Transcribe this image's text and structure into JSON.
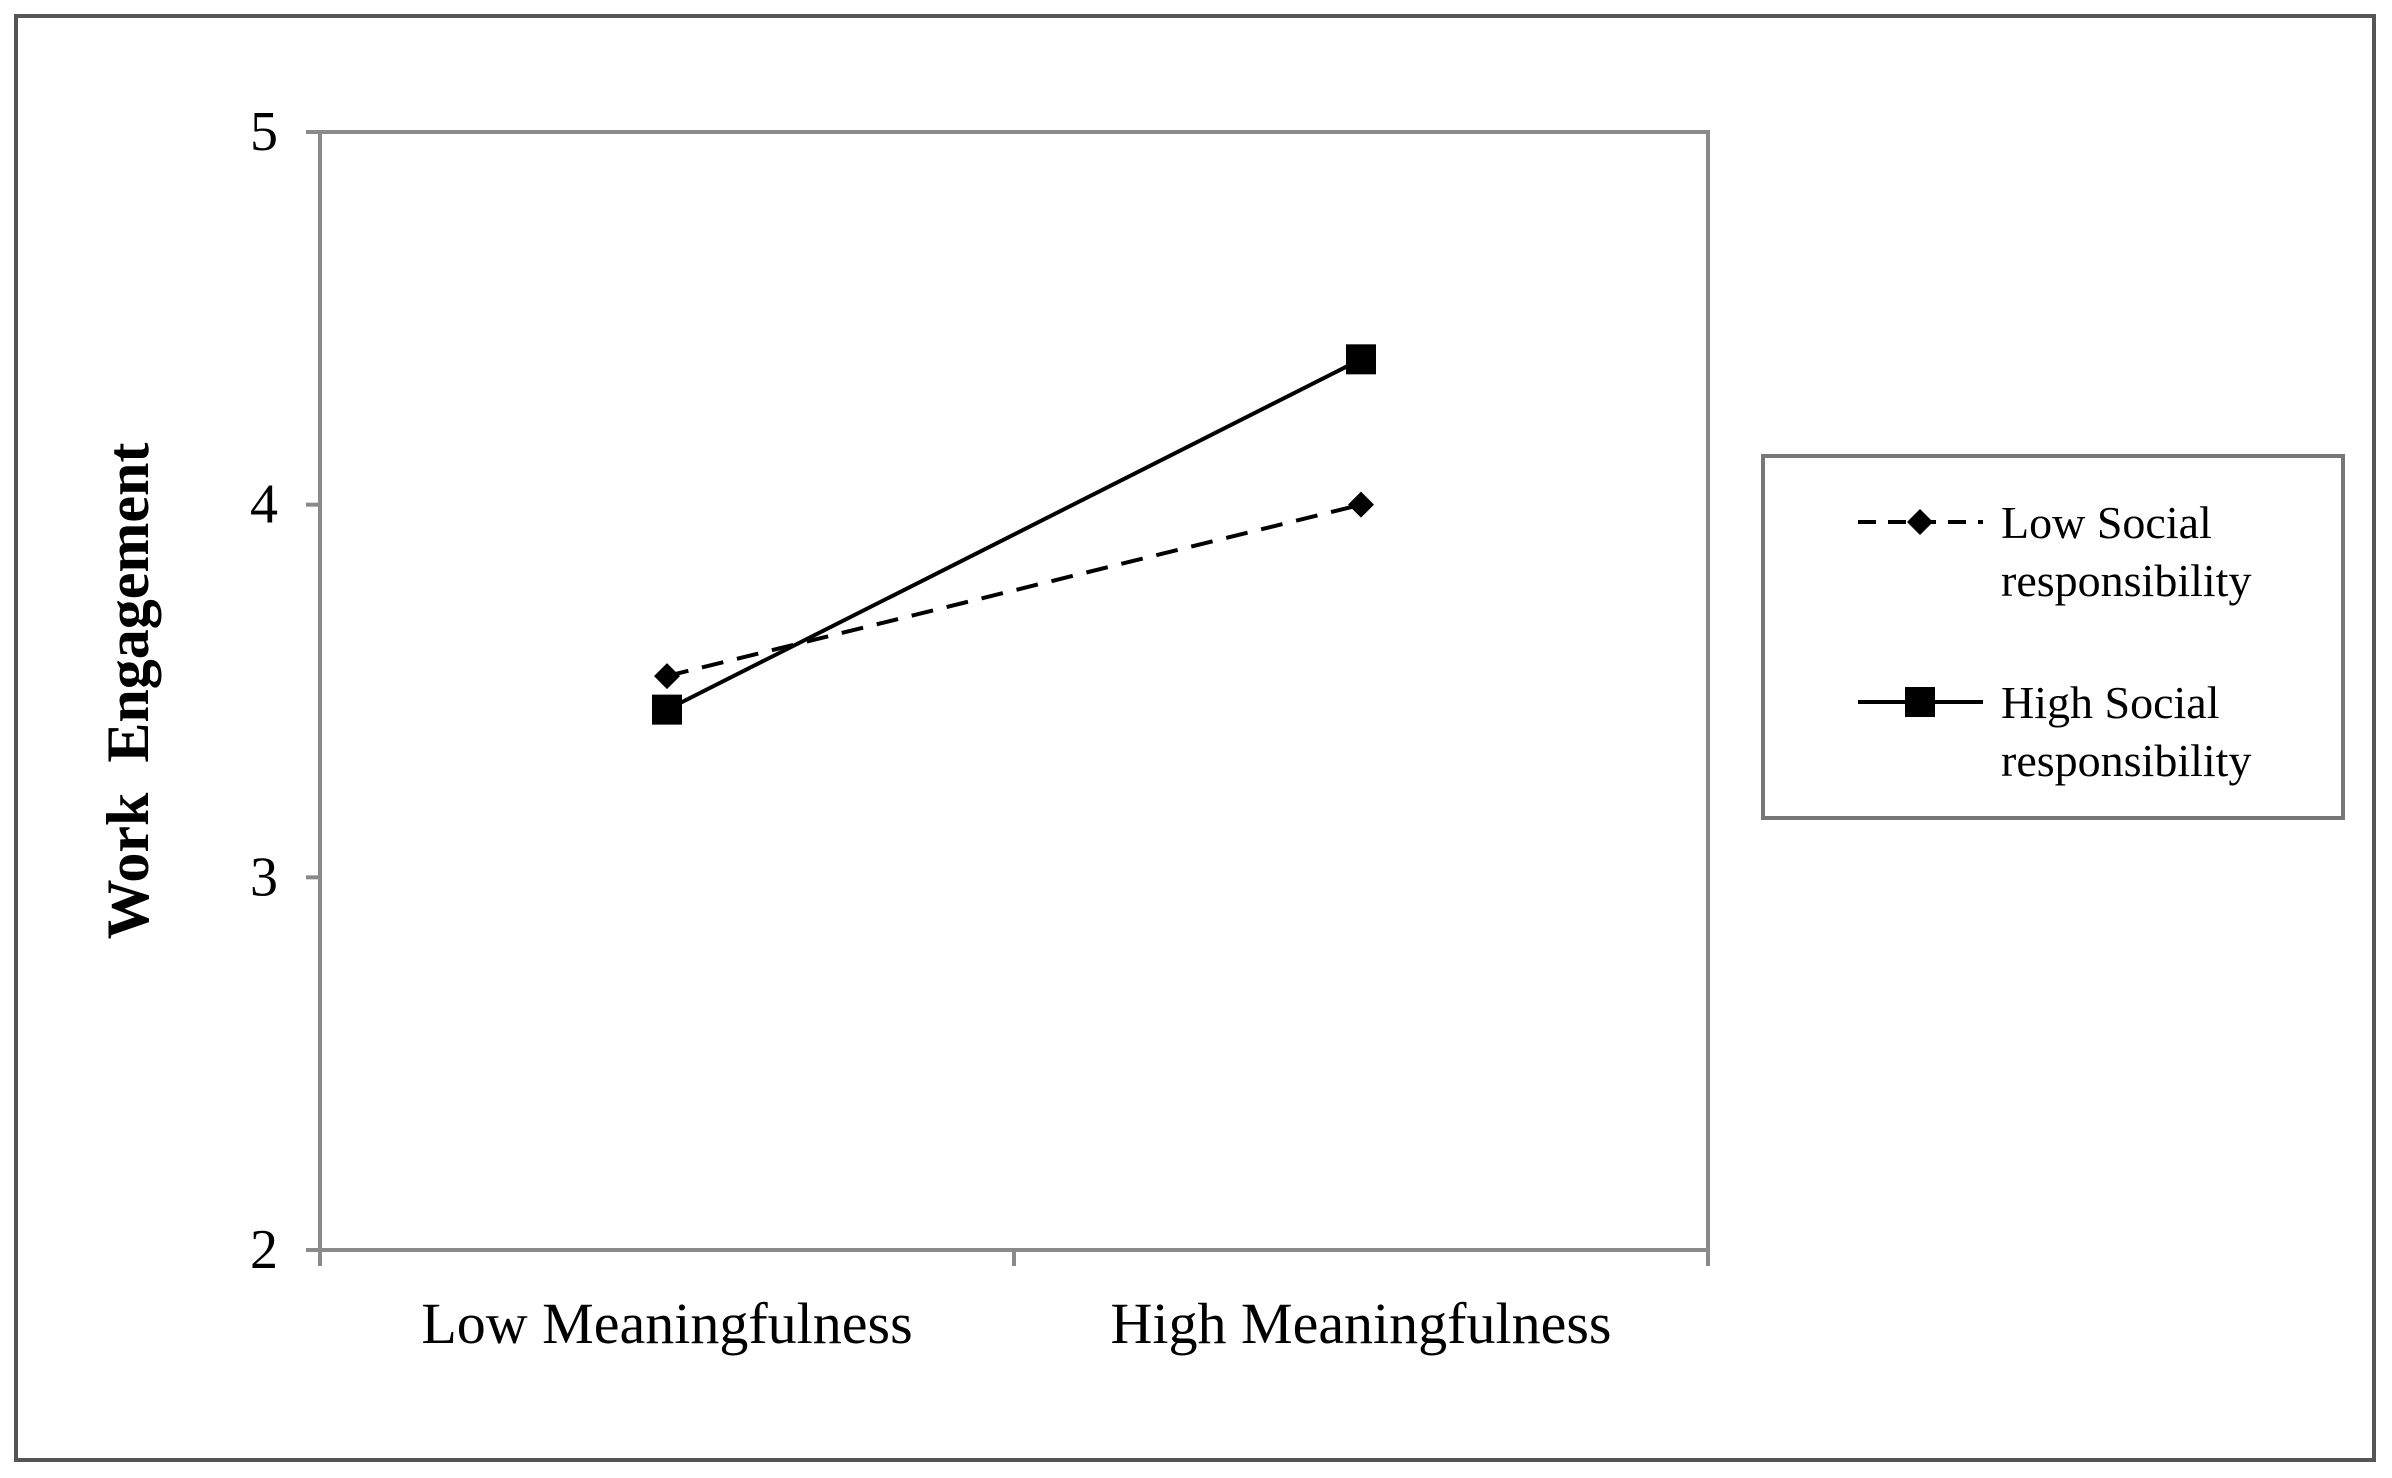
{
  "chart_data": {
    "type": "line",
    "title": "",
    "xlabel": "",
    "ylabel": "Work  Engagement",
    "categories": [
      "Low Meaningfulness",
      "High Meaningfulness"
    ],
    "ylim": [
      2,
      5
    ],
    "yticks": [
      "2",
      "3",
      "4",
      "5"
    ],
    "grid": false,
    "legend_position": "right",
    "series": [
      {
        "name": "Low Social responsibility",
        "name_lines": [
          "Low Social",
          "responsibility"
        ],
        "values": [
          3.54,
          4.0
        ],
        "line_style": "dashed",
        "marker": "diamond",
        "color": "#000000"
      },
      {
        "name": "High Social responsibility",
        "name_lines": [
          "High Social",
          "responsibility"
        ],
        "values": [
          3.45,
          4.39
        ],
        "line_style": "solid",
        "marker": "square",
        "color": "#000000"
      }
    ]
  }
}
